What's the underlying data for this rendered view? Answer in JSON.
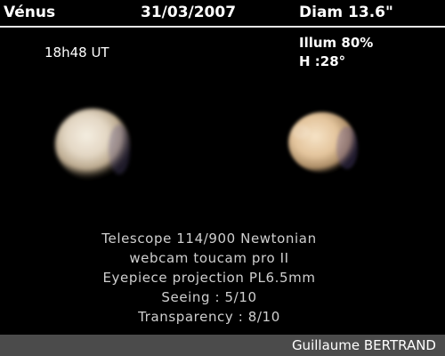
{
  "header": {
    "object": "Vénus",
    "date": "31/03/2007",
    "diameter": "Diam 13.6\""
  },
  "observation": {
    "time": "18h48 UT",
    "illumination": "Illum 80%",
    "altitude": "H :28°"
  },
  "equipment": {
    "line1": "Telescope 114/900 Newtonian",
    "line2": "webcam toucam pro II",
    "line3": "Eyepiece projection PL6.5mm",
    "line4": "Seeing : 5/10",
    "line5": "Transparency : 8/10"
  },
  "footer": {
    "author": "Guillaume BERTRAND"
  },
  "colors": {
    "background": "#000000",
    "footer_bar": "#4b4b4b",
    "planet_left_core": "#f1e8d8",
    "planet_right_core": "#f0dcc0"
  }
}
